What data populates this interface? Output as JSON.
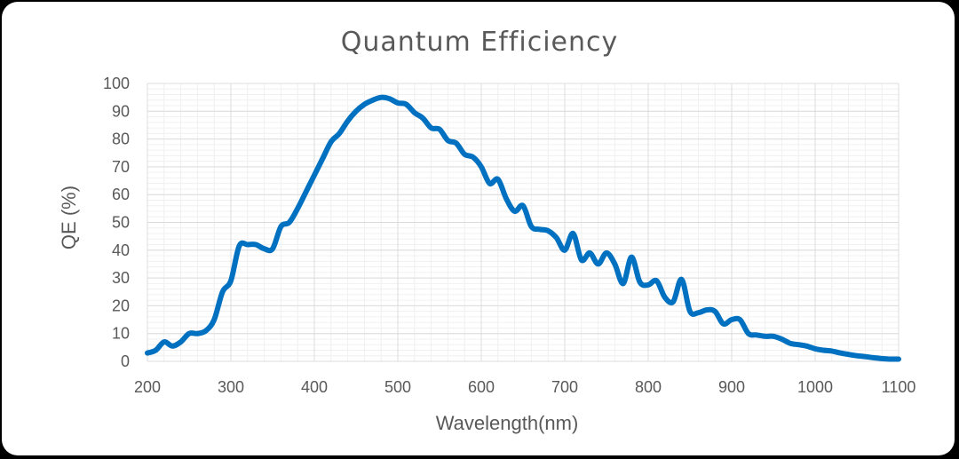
{
  "chart_data": {
    "type": "line",
    "title": "Quantum Efficiency",
    "xlabel": "Wavelength(nm)",
    "ylabel": "QE (%)",
    "xlim": [
      200,
      1100
    ],
    "ylim": [
      0,
      100
    ],
    "xticks": [
      200,
      300,
      400,
      500,
      600,
      700,
      800,
      900,
      1000,
      1100
    ],
    "yticks": [
      0,
      10,
      20,
      30,
      40,
      50,
      60,
      70,
      80,
      90,
      100
    ],
    "grid": true,
    "series": [
      {
        "name": "QE",
        "color": "#0070C0",
        "x": [
          200,
          210,
          220,
          230,
          240,
          250,
          260,
          270,
          280,
          290,
          300,
          310,
          320,
          330,
          340,
          350,
          360,
          370,
          380,
          390,
          400,
          410,
          420,
          430,
          440,
          450,
          460,
          470,
          480,
          490,
          500,
          510,
          520,
          530,
          540,
          550,
          560,
          570,
          580,
          590,
          600,
          610,
          620,
          630,
          640,
          650,
          660,
          670,
          680,
          690,
          700,
          710,
          720,
          730,
          740,
          750,
          760,
          770,
          780,
          790,
          800,
          810,
          820,
          830,
          840,
          850,
          860,
          870,
          880,
          890,
          900,
          910,
          920,
          930,
          940,
          950,
          960,
          970,
          980,
          990,
          1000,
          1010,
          1020,
          1030,
          1040,
          1050,
          1060,
          1070,
          1080,
          1090,
          1100
        ],
        "y": [
          3,
          4,
          7,
          5.5,
          7,
          10,
          10,
          11,
          15,
          25,
          29,
          41.5,
          42,
          42,
          40.5,
          40.5,
          48.5,
          50,
          55,
          61,
          67,
          73,
          79,
          82,
          86.5,
          90,
          92.5,
          94,
          95,
          94.5,
          93,
          92.5,
          89.5,
          87.5,
          84,
          83.5,
          79.5,
          78.5,
          74.5,
          73.5,
          70,
          64,
          65.5,
          58.5,
          54,
          56,
          48.5,
          47.5,
          47,
          44.5,
          40,
          46,
          36.5,
          39,
          35,
          39,
          35,
          28,
          37.5,
          28.5,
          27.5,
          29,
          23,
          21.5,
          29.5,
          18,
          17.5,
          18.5,
          18,
          13.5,
          15,
          15,
          10,
          9.5,
          9,
          9,
          8,
          6.5,
          6,
          5.5,
          4.5,
          4,
          3.7,
          3,
          2.5,
          2,
          1.7,
          1.3,
          1,
          0.8,
          0.8
        ]
      }
    ]
  }
}
